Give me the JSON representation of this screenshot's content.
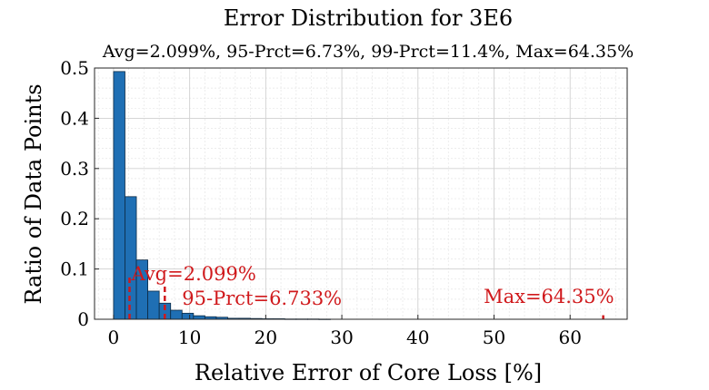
{
  "chart_data": {
    "type": "bar",
    "title": "Error Distribution for 3E6",
    "subtitle": "Avg=2.099%, 95-Prct=6.73%, 99-Prct=11.4%, Max=64.35%",
    "xlabel": "Relative Error of Core Loss [%]",
    "ylabel": "Ratio of Data Points",
    "xlim": [
      -2.5,
      67.5
    ],
    "ylim": [
      0,
      0.5
    ],
    "xticks": [
      0,
      10,
      20,
      30,
      40,
      50,
      60
    ],
    "yticks": [
      0,
      0.1,
      0.2,
      0.3,
      0.4,
      0.5
    ],
    "ytick_labels": [
      "0",
      "0.1",
      "0.2",
      "0.3",
      "0.4",
      "0.5"
    ],
    "grid": true,
    "minor_grid": true,
    "bin_width": 1.5,
    "bin_start": 0,
    "values": [
      0.493,
      0.244,
      0.118,
      0.056,
      0.032,
      0.018,
      0.012,
      0.007,
      0.005,
      0.004,
      0.002,
      0.002,
      0.0015,
      0.001,
      0.001,
      0.0005,
      0.0005,
      0.0005,
      0.0003
    ],
    "bar_color": "#1f6fb4",
    "annotations": [
      {
        "label": "Avg=2.099%",
        "x": 2.099,
        "line_top": 0.085
      },
      {
        "label": "95-Prct=6.733%",
        "x": 6.733,
        "line_top": 0.065
      },
      {
        "label": "Max=64.35%",
        "x": 64.35,
        "line_top": 0.008
      }
    ],
    "annotation_color": "#d0191c"
  }
}
